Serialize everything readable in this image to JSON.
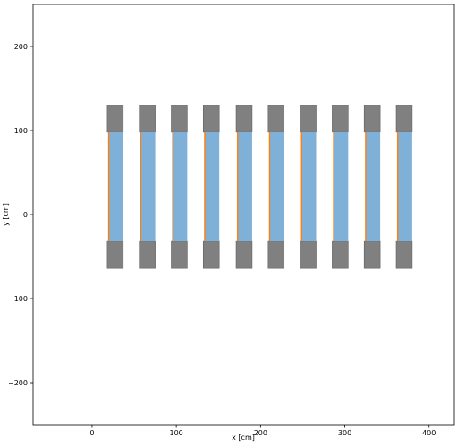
{
  "chart_data": {
    "type": "rectangles",
    "xlabel": "x [cm]",
    "ylabel": "y [cm]",
    "xlim": [
      -70,
      430
    ],
    "ylim": [
      -250,
      250
    ],
    "xticks": [
      0,
      100,
      200,
      300,
      400
    ],
    "yticks": [
      {
        "value": -200,
        "label": "−200"
      },
      {
        "value": -100,
        "label": "−100"
      },
      0,
      100,
      200
    ],
    "grid": false,
    "shapes": [
      {
        "color": "#808080",
        "x0": [
          18,
          56,
          94,
          132,
          171,
          209,
          247,
          285,
          323,
          361
        ],
        "x1": [
          37,
          75,
          113,
          151,
          190,
          228,
          266,
          304,
          342,
          380
        ],
        "y0": 98,
        "y1": 130
      },
      {
        "color": "#808080",
        "x0": [
          18,
          56,
          94,
          132,
          171,
          209,
          247,
          285,
          323,
          361
        ],
        "x1": [
          37,
          75,
          113,
          151,
          190,
          228,
          266,
          304,
          342,
          380
        ],
        "y0": -64,
        "y1": -32
      },
      {
        "color": "#7fb1d8",
        "x0": [
          20,
          58,
          96,
          134,
          173,
          211,
          249,
          287,
          325,
          363
        ],
        "x1": [
          37,
          75,
          113,
          151,
          190,
          228,
          266,
          304,
          342,
          380
        ],
        "y0": -32,
        "y1": 98
      },
      {
        "color": "#ff7f0e",
        "x0": [
          19,
          57,
          95,
          133,
          172,
          210,
          248,
          286,
          324,
          362
        ],
        "x1": [
          20.5,
          58.5,
          96.5,
          134.5,
          173.5,
          211.5,
          249.5,
          287.5,
          325.5,
          363.5
        ],
        "y0": -32,
        "y1": 98
      }
    ]
  }
}
